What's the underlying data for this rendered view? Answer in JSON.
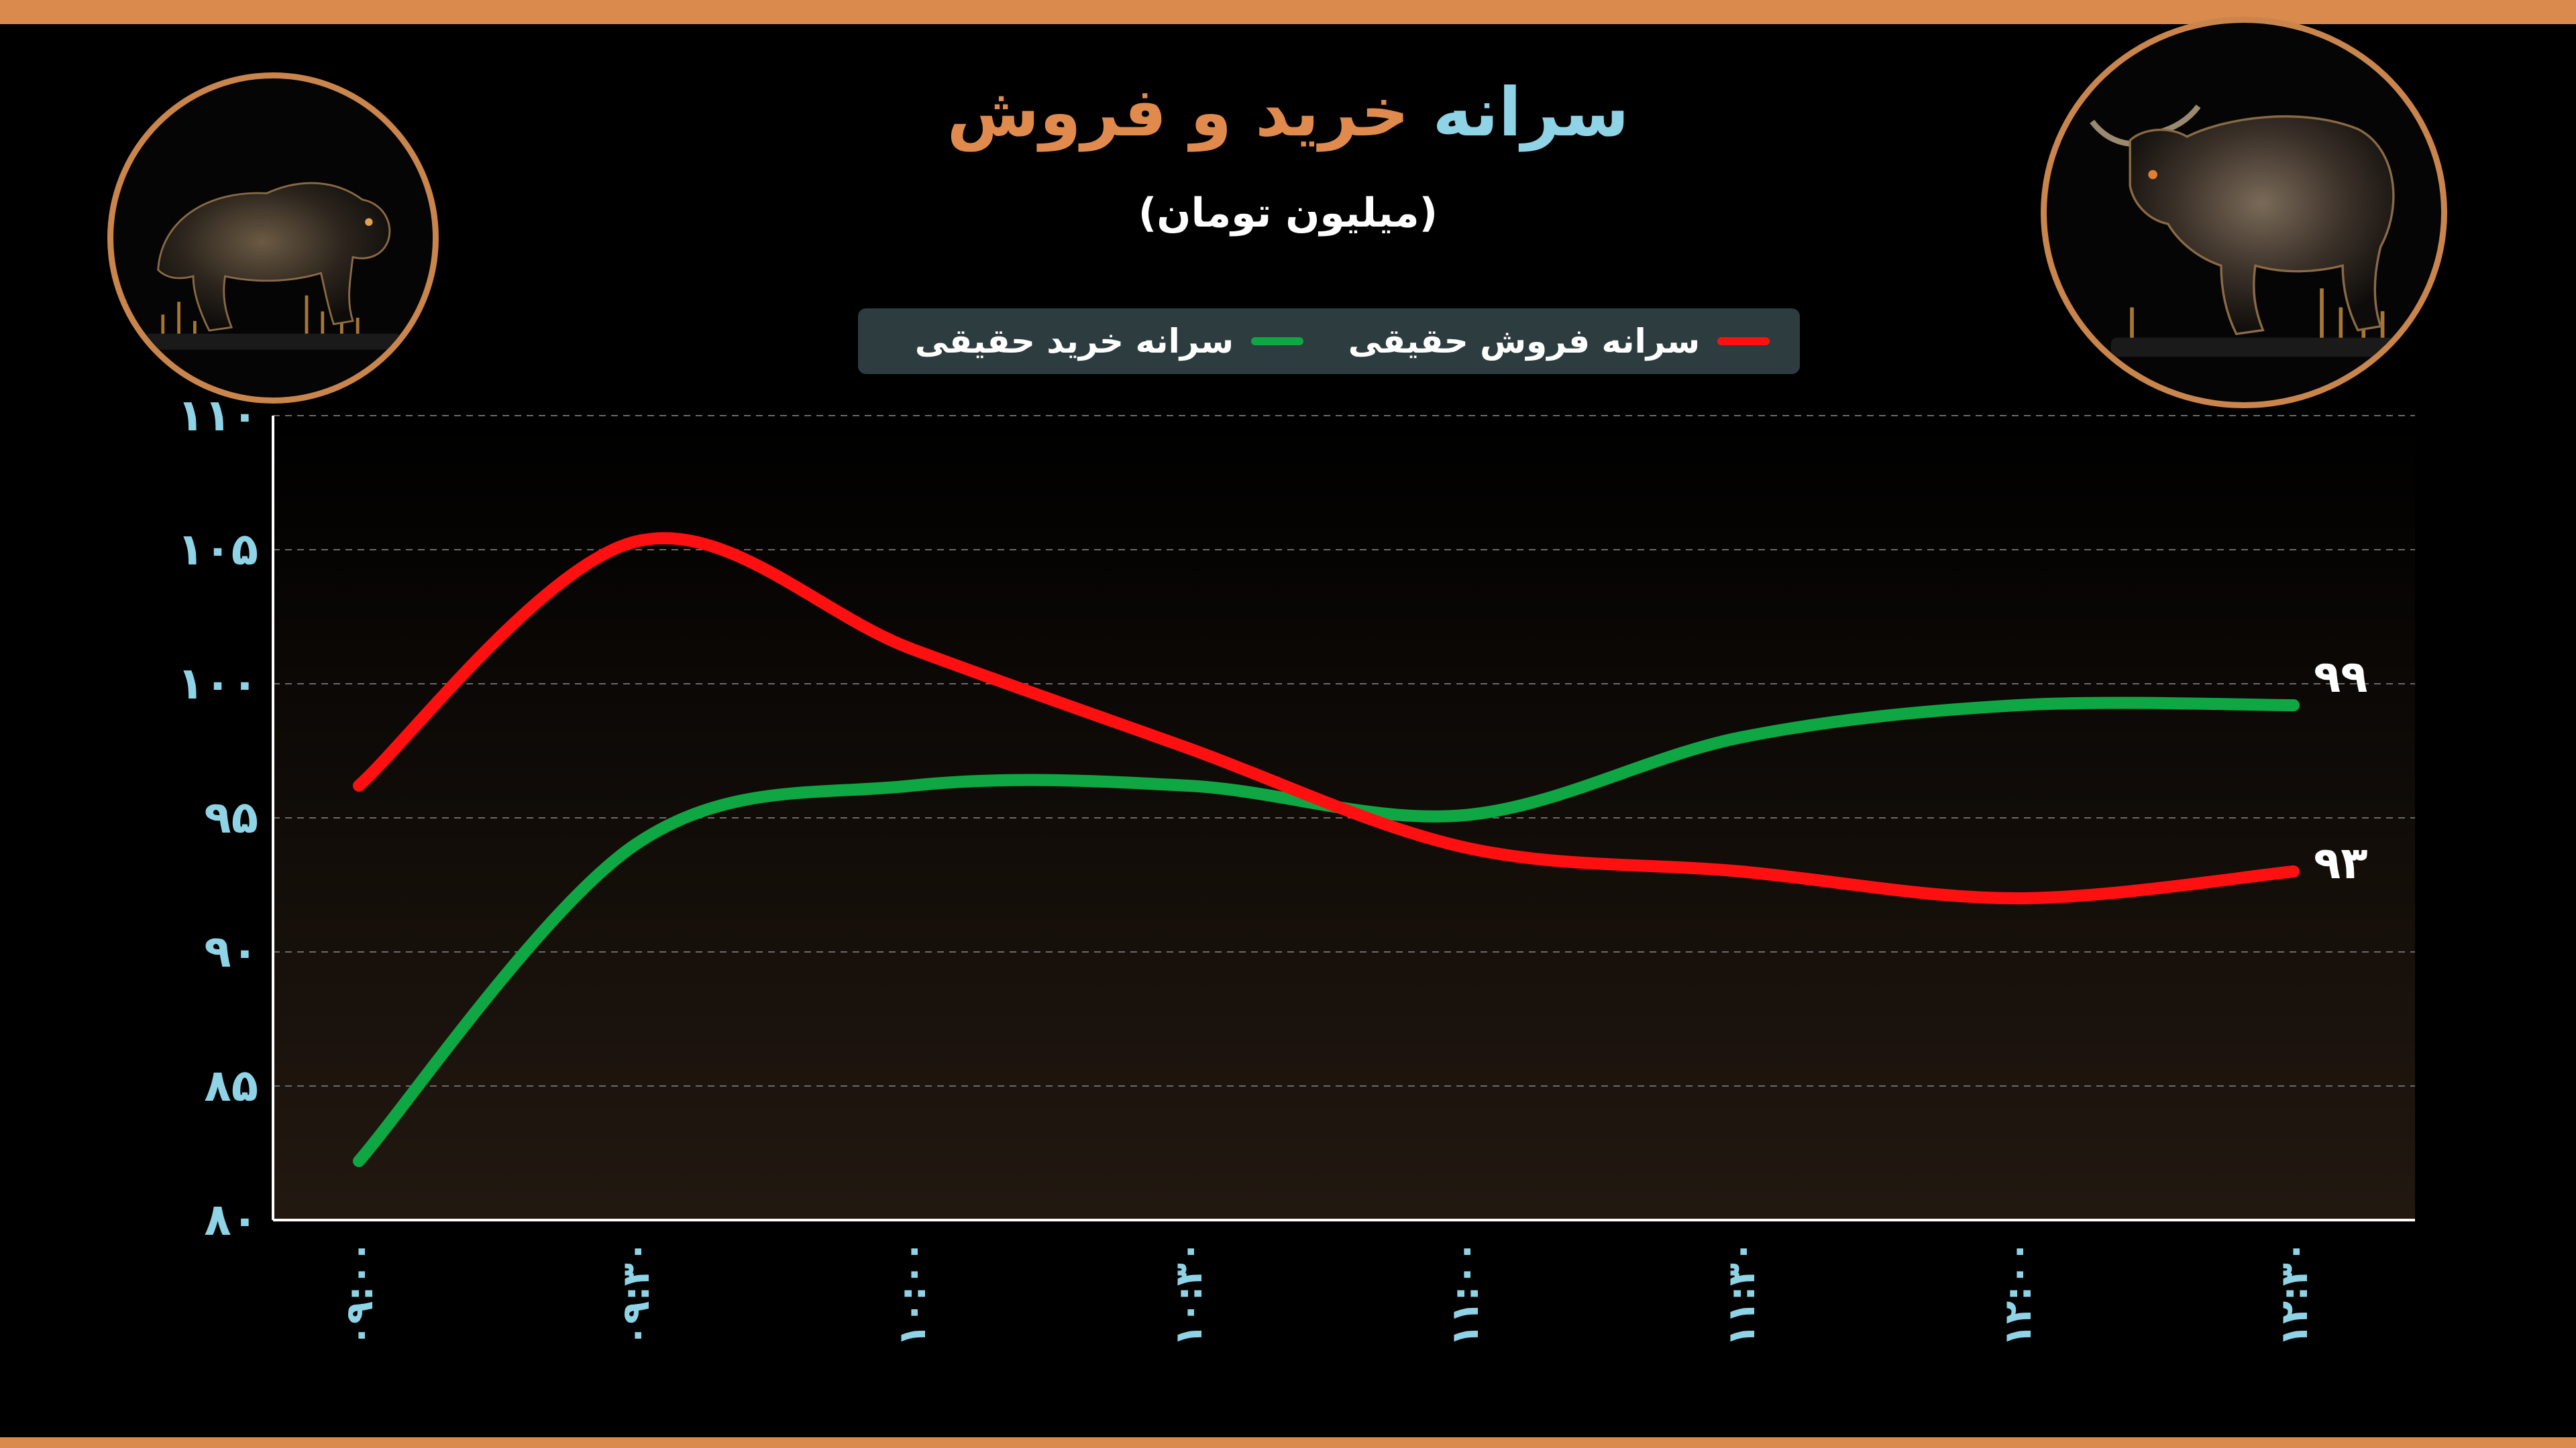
{
  "title": {
    "part1": "سرانه",
    "part2": "خرید و فروش"
  },
  "subtitle": "(میلیون تومان)",
  "legend": {
    "sell": "سرانه فروش حقیقی",
    "buy": "سرانه خرید حقیقی"
  },
  "colors": {
    "accent": "#d98a4c",
    "title_blue": "#8fd3e6",
    "title_orange": "#e08a4e",
    "axis_text": "#8fd3e6",
    "sell": "#ff1010",
    "buy": "#0fa644",
    "legend_bg": "#2d3d3f",
    "background": "#000000"
  },
  "icons": {
    "left": "bear-icon",
    "right": "bull-icon"
  },
  "chart_data": {
    "type": "line",
    "title": "سرانه خرید و فروش",
    "subtitle": "(میلیون تومان)",
    "xlabel": "",
    "ylabel": "",
    "categories": [
      "۰۹:۰۰",
      "۰۹:۳۰",
      "۱۰:۰۰",
      "۱۰:۳۰",
      "۱۱:۰۰",
      "۱۱:۳۰",
      "۱۲:۰۰",
      "۱۲:۳۰"
    ],
    "ylim": [
      80,
      110
    ],
    "yticks": [
      80,
      85,
      90,
      95,
      100,
      105,
      110
    ],
    "ytick_labels": [
      "۸۰",
      "۸۵",
      "۹۰",
      "۹۵",
      "۱۰۰",
      "۱۰۵",
      "۱۱۰"
    ],
    "grid": true,
    "legend_position": "top-center",
    "series": [
      {
        "name": "سرانه فروش حقیقی",
        "color": "#ff1010",
        "values": [
          96.2,
          105.3,
          101.3,
          97.6,
          93.9,
          93.0,
          92.0,
          93.0
        ],
        "end_label": "۹۳"
      },
      {
        "name": "سرانه خرید حقیقی",
        "color": "#0fa644",
        "values": [
          82.2,
          94.0,
          96.2,
          96.2,
          95.1,
          98.0,
          99.2,
          99.2
        ],
        "end_label": "۹۹"
      }
    ]
  }
}
